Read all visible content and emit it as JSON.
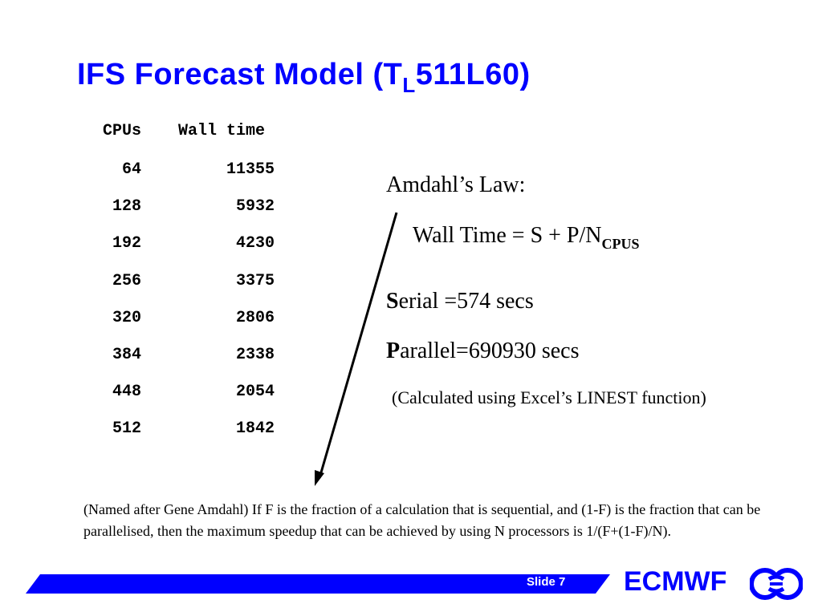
{
  "slide": {
    "title_main": "IFS Forecast Model (T",
    "title_sub": "L",
    "title_end": "511L60)"
  },
  "table": {
    "headers": [
      "CPUs",
      "Wall time"
    ],
    "rows": [
      {
        "cpus": "64",
        "wall": "11355"
      },
      {
        "cpus": "128",
        "wall": "5932"
      },
      {
        "cpus": "192",
        "wall": "4230"
      },
      {
        "cpus": "256",
        "wall": "3375"
      },
      {
        "cpus": "320",
        "wall": "2806"
      },
      {
        "cpus": "384",
        "wall": "2338"
      },
      {
        "cpus": "448",
        "wall": "2054"
      },
      {
        "cpus": "512",
        "wall": "1842"
      }
    ]
  },
  "amdahl": {
    "title": "Amdahl’s Law:",
    "formula_main": "Wall Time = S + P/N",
    "formula_sub": "CPUS",
    "serial_initial": "S",
    "serial_rest": "erial =574 secs",
    "parallel_initial": "P",
    "parallel_rest": "arallel=690930 secs",
    "note": "(Calculated using Excel’s LINEST function)"
  },
  "footnote": "(Named after Gene Amdahl) If F is the fraction of a calculation that is sequential, and (1-F) is the fraction that can be parallelised, then the maximum speedup that can be achieved by using N processors is 1/(F+(1-F)/N).",
  "footer": {
    "slide_label": "Slide 7",
    "brand": "ECMWF",
    "bar_color": "#0000ff"
  }
}
